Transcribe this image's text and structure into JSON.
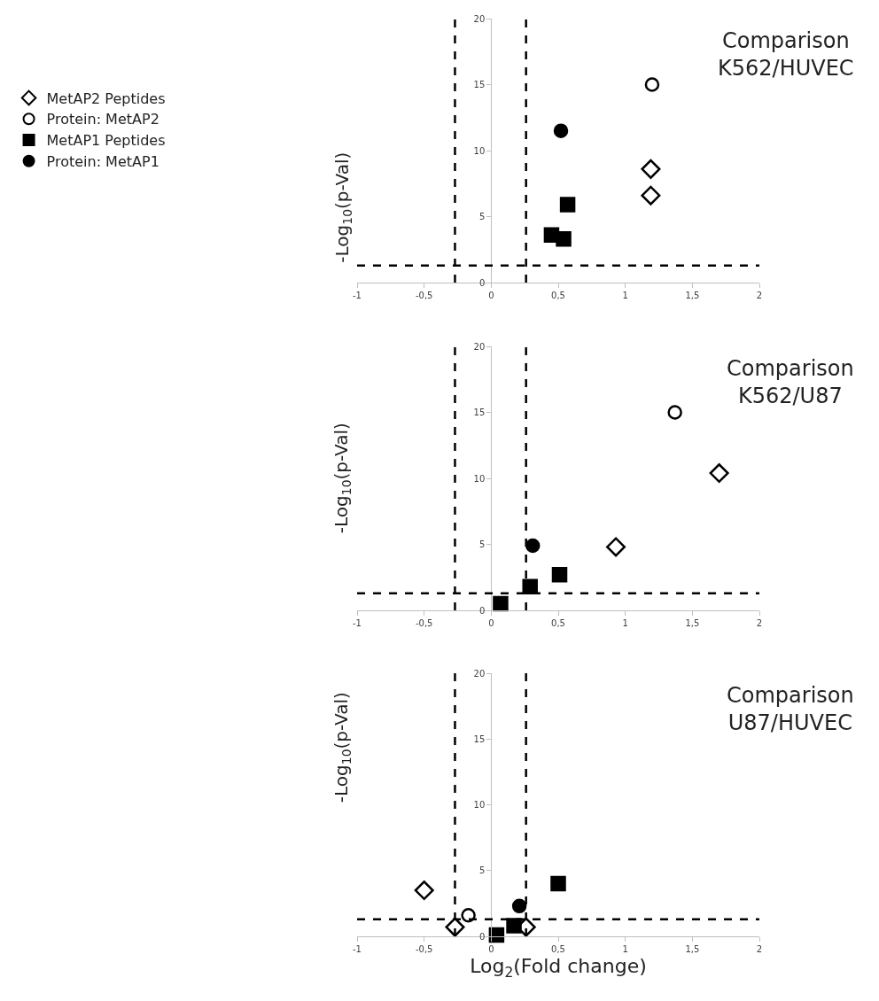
{
  "chart_data": [
    {
      "type": "scatter",
      "ylabel": "-Log$_{10}$(p-Val)",
      "annotations": [
        "Comparison\nK562/HUVEC"
      ],
      "legend": "left",
      "xlim": [
        -1,
        2
      ],
      "xticks": [
        {
          "value": -1,
          "label": "-1"
        },
        {
          "value": -0.5,
          "label": "-0,5"
        },
        0,
        {
          "value": 0.5,
          "label": "0,5"
        },
        1,
        {
          "value": 1.5,
          "label": "1,5"
        },
        2
      ],
      "ylim": [
        0,
        20
      ],
      "yticks": [
        0,
        5,
        10,
        15,
        20
      ],
      "ref_lines": [
        {
          "axis": "x",
          "value": -0.27,
          "line_style": "dashed",
          "color": "#000000"
        },
        {
          "axis": "x",
          "value": 0.26,
          "line_style": "dashed",
          "color": "#000000"
        },
        {
          "axis": "y",
          "value": 1.3,
          "line_style": "dashed",
          "color": "#000000"
        }
      ],
      "series": [
        {
          "name": "MetAP2 Peptides",
          "color": "#ffffff",
          "marker": "diamond",
          "x": [
            1.19,
            1.19
          ],
          "values": [
            8.6,
            6.6
          ]
        },
        {
          "name": "Protein: MetAP2",
          "color": "#ffffff",
          "marker": "circle",
          "x": [
            1.2
          ],
          "values": [
            15
          ]
        },
        {
          "name": "MetAP1 Peptides",
          "color": "#000000",
          "marker": "square",
          "x": [
            0.57,
            0.45,
            0.54
          ],
          "values": [
            5.9,
            3.6,
            3.3
          ]
        },
        {
          "name": "Protein: MetAP1",
          "color": "#000000",
          "marker": "circle",
          "x": [
            0.52
          ],
          "values": [
            11.5
          ]
        }
      ]
    },
    {
      "type": "scatter",
      "ylabel": "-Log$_{10}$(p-Val)",
      "annotations": [
        "Comparison\nK562/U87"
      ],
      "xlim": [
        -1,
        2
      ],
      "xticks": [
        {
          "value": -1,
          "label": "-1"
        },
        {
          "value": -0.5,
          "label": "-0,5"
        },
        0,
        {
          "value": 0.5,
          "label": "0,5"
        },
        1,
        {
          "value": 1.5,
          "label": "1,5"
        },
        2
      ],
      "ylim": [
        0,
        20
      ],
      "yticks": [
        0,
        5,
        10,
        15,
        20
      ],
      "ref_lines": [
        {
          "axis": "x",
          "value": -0.27,
          "line_style": "dashed",
          "color": "#000000"
        },
        {
          "axis": "x",
          "value": 0.26,
          "line_style": "dashed",
          "color": "#000000"
        },
        {
          "axis": "y",
          "value": 1.3,
          "line_style": "dashed",
          "color": "#000000"
        }
      ],
      "series": [
        {
          "color": "#ffffff",
          "marker": "diamond",
          "x": [
            1.7,
            0.93
          ],
          "values": [
            10.4,
            4.8
          ]
        },
        {
          "color": "#ffffff",
          "marker": "circle",
          "x": [
            1.37
          ],
          "values": [
            15
          ]
        },
        {
          "color": "#000000",
          "marker": "square",
          "x": [
            0.51,
            0.29,
            0.07
          ],
          "values": [
            2.7,
            1.8,
            0.5
          ]
        },
        {
          "color": "#000000",
          "marker": "circle",
          "x": [
            0.31
          ],
          "values": [
            4.9
          ]
        }
      ]
    },
    {
      "type": "scatter",
      "xlabel": "Log$_{2}$(Fold change)",
      "ylabel": "-Log$_{10}$(p-Val)",
      "annotations": [
        "Comparison\nU87/HUVEC"
      ],
      "xlim": [
        -1,
        2
      ],
      "xticks": [
        {
          "value": -1,
          "label": "-1"
        },
        {
          "value": -0.5,
          "label": "-0,5"
        },
        0,
        {
          "value": 0.5,
          "label": "0,5"
        },
        1,
        {
          "value": 1.5,
          "label": "1,5"
        },
        2
      ],
      "ylim": [
        0,
        20
      ],
      "yticks": [
        0,
        5,
        10,
        15,
        20
      ],
      "ref_lines": [
        {
          "axis": "x",
          "value": -0.27,
          "line_style": "dashed",
          "color": "#000000"
        },
        {
          "axis": "x",
          "value": 0.26,
          "line_style": "dashed",
          "color": "#000000"
        },
        {
          "axis": "y",
          "value": 1.3,
          "line_style": "dashed",
          "color": "#000000"
        }
      ],
      "series": [
        {
          "color": "#ffffff",
          "marker": "diamond",
          "x": [
            -0.5,
            -0.27,
            0.26
          ],
          "values": [
            3.5,
            0.7,
            0.7
          ]
        },
        {
          "color": "#ffffff",
          "marker": "circle",
          "x": [
            -0.17
          ],
          "values": [
            1.6
          ]
        },
        {
          "color": "#000000",
          "marker": "square",
          "x": [
            0.5,
            0.04,
            0.17
          ],
          "values": [
            4.0,
            0.1,
            0.8
          ]
        },
        {
          "color": "#000000",
          "marker": "circle",
          "x": [
            0.21
          ],
          "values": [
            2.3
          ]
        }
      ]
    }
  ]
}
